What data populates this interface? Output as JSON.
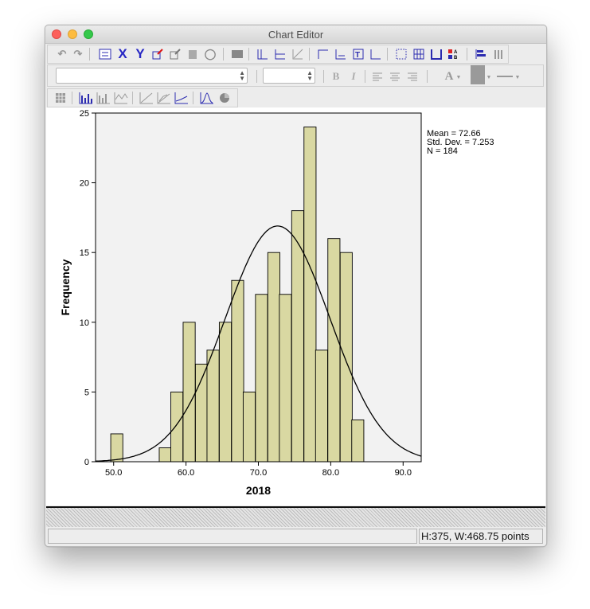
{
  "window": {
    "title": "Chart Editor"
  },
  "toolbar1": {
    "icons": [
      "undo-icon",
      "redo-icon",
      "properties-icon",
      "x-axis-icon",
      "y-axis-icon",
      "select-chart-icon",
      "select-frame-icon",
      "transpose-icon",
      "lasso-icon",
      "data-editor-icon",
      "add-reference-line-y-icon",
      "add-reference-line-x-icon",
      "add-fit-line-icon",
      "add-title-icon",
      "add-footnote-icon",
      "add-text-box-icon",
      "add-marker-icon",
      "grid-icon",
      "grid-lines-icon",
      "frame-icon",
      "legend-icon",
      "transpose-chart-icon",
      "bar-chart-icon"
    ]
  },
  "toolbar2": {
    "font_value": "",
    "size_value": "",
    "bold": "B",
    "italic": "I",
    "text_color": "A"
  },
  "toolbar3": {
    "icons": [
      "data-points-icon",
      "bar-chart-icon",
      "stacked-bar-icon",
      "line-chart-icon",
      "scatter-icon",
      "fit-line-icon",
      "line-icon",
      "distribution-curve-icon",
      "pie-icon"
    ]
  },
  "chart_data": {
    "type": "bar",
    "xlabel": "2018",
    "ylabel": "Frequency",
    "xlim": [
      47.5,
      92.5
    ],
    "ylim": [
      0,
      25
    ],
    "x_ticks": [
      50,
      60,
      70,
      80,
      90
    ],
    "x_tick_labels": [
      "50.0",
      "60.0",
      "70.0",
      "80.0",
      "90.0"
    ],
    "y_ticks": [
      0,
      5,
      10,
      15,
      20,
      25
    ],
    "y_tick_labels": [
      "0",
      "5",
      "10",
      "15",
      "20",
      "25"
    ],
    "bin_width": 1.67,
    "bins": [
      {
        "start": 49.6,
        "value": 2
      },
      {
        "start": 56.3,
        "value": 1
      },
      {
        "start": 57.9,
        "value": 5
      },
      {
        "start": 59.6,
        "value": 10
      },
      {
        "start": 61.3,
        "value": 7
      },
      {
        "start": 62.9,
        "value": 8
      },
      {
        "start": 64.6,
        "value": 10
      },
      {
        "start": 66.3,
        "value": 13
      },
      {
        "start": 67.9,
        "value": 5
      },
      {
        "start": 69.6,
        "value": 12
      },
      {
        "start": 71.3,
        "value": 15
      },
      {
        "start": 72.9,
        "value": 12
      },
      {
        "start": 74.6,
        "value": 18
      },
      {
        "start": 76.3,
        "value": 24
      },
      {
        "start": 77.9,
        "value": 8
      },
      {
        "start": 79.6,
        "value": 16
      },
      {
        "start": 81.3,
        "value": 15
      },
      {
        "start": 82.9,
        "value": 3
      }
    ],
    "normal_curve": {
      "mean": 72.66,
      "sd": 7.253,
      "n": 184
    },
    "stats_lines": [
      "Mean = 72.66",
      "Std. Dev. = 7.253",
      "N = 184"
    ],
    "bar_color": "#d9d8a2",
    "plot_bg": "#f2f2f2"
  },
  "status": {
    "left": "",
    "right": "H:375, W:468.75 points"
  }
}
